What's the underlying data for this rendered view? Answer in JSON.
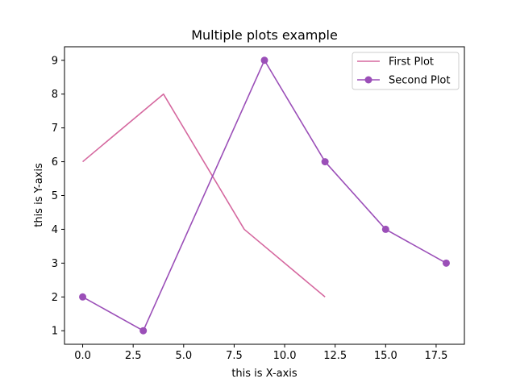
{
  "chart_data": {
    "type": "line",
    "title": "Multiple plots example",
    "xlabel": "this is X-axis",
    "ylabel": "this is Y-axis",
    "xlim": [
      -0.9,
      18.9
    ],
    "ylim": [
      0.6,
      9.4
    ],
    "xticks": [
      0,
      2.5,
      5,
      7.5,
      10,
      12.5,
      15,
      17.5
    ],
    "xtick_labels": [
      "0.0",
      "2.5",
      "5.0",
      "7.5",
      "10.0",
      "12.5",
      "15.0",
      "17.5"
    ],
    "yticks": [
      1,
      2,
      3,
      4,
      5,
      6,
      7,
      8,
      9
    ],
    "ytick_labels": [
      "1",
      "2",
      "3",
      "4",
      "5",
      "6",
      "7",
      "8",
      "9"
    ],
    "grid": false,
    "legend": "top-right",
    "series": [
      {
        "name": "First Plot",
        "color": "#d5689f",
        "marker": "none",
        "x": [
          0,
          4,
          8,
          12
        ],
        "y": [
          6,
          8,
          4,
          2
        ]
      },
      {
        "name": "Second Plot",
        "color": "#9b4fb8",
        "marker": "circle",
        "x": [
          0,
          3,
          9,
          12,
          15,
          18
        ],
        "y": [
          2,
          1,
          9,
          6,
          4,
          3
        ]
      }
    ]
  }
}
